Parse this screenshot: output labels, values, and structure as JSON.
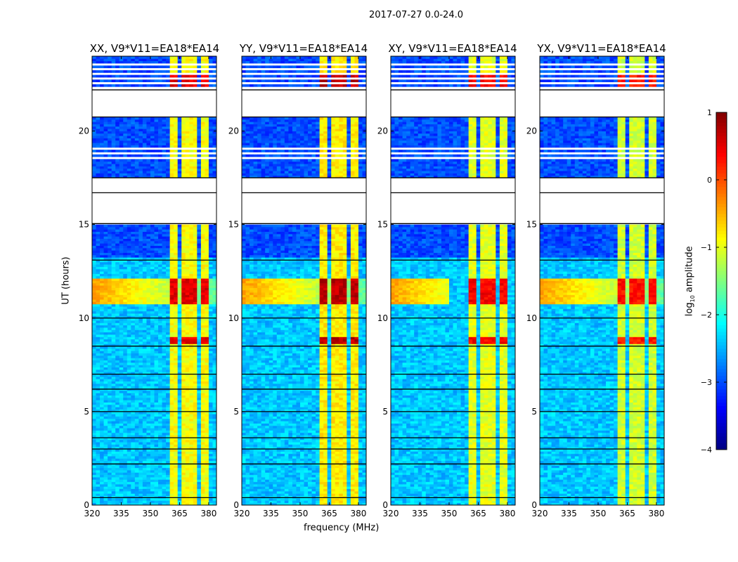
{
  "chart_data": {
    "type": "heatmap",
    "title": "2017-07-27 0.0-24.0",
    "ylabel": "UT (hours)",
    "xlabel": "frequency (MHz)",
    "xlim": [
      320,
      384
    ],
    "ylim": [
      0,
      24
    ],
    "xticks": [
      "320",
      "335",
      "350",
      "365",
      "380"
    ],
    "xtick_values": [
      320,
      335,
      350,
      365,
      380
    ],
    "yticks": [
      "0",
      "5",
      "10",
      "15",
      "20"
    ],
    "ytick_values": [
      0,
      5,
      10,
      15,
      20
    ],
    "panels": [
      {
        "title": "XX, V9*V11=EA18*EA14",
        "bright_level": -0.9,
        "flare_level": 0.5
      },
      {
        "title": "YY, V9*V11=EA18*EA14",
        "bright_level": -0.8,
        "flare_level": 0.7
      },
      {
        "title": "XY, V9*V11=EA18*EA14",
        "bright_level": -1.0,
        "flare_level": 0.4
      },
      {
        "title": "YX, V9*V11=EA18*EA14",
        "bright_level": -1.1,
        "flare_level": 0.3
      }
    ],
    "colorbar": {
      "label": "log10 amplitude",
      "label_main": "log",
      "label_sub": "10",
      "label_rest": " amplitude",
      "range": [
        -4,
        1
      ],
      "ticks": [
        "1",
        "0",
        "−1",
        "−2",
        "−3",
        "−4"
      ],
      "tick_values": [
        1,
        0,
        -1,
        -2,
        -3,
        -4
      ]
    },
    "data_gaps_hours": [
      [
        15.05,
        17.5
      ],
      [
        20.75,
        22.2
      ]
    ],
    "bright_band_mhz": [
      360,
      380
    ],
    "background_level": -2.4,
    "flare_hours": [
      [
        10.8,
        12.1
      ],
      [
        8.6,
        9.0
      ],
      [
        22.4,
        23.0
      ]
    ]
  }
}
